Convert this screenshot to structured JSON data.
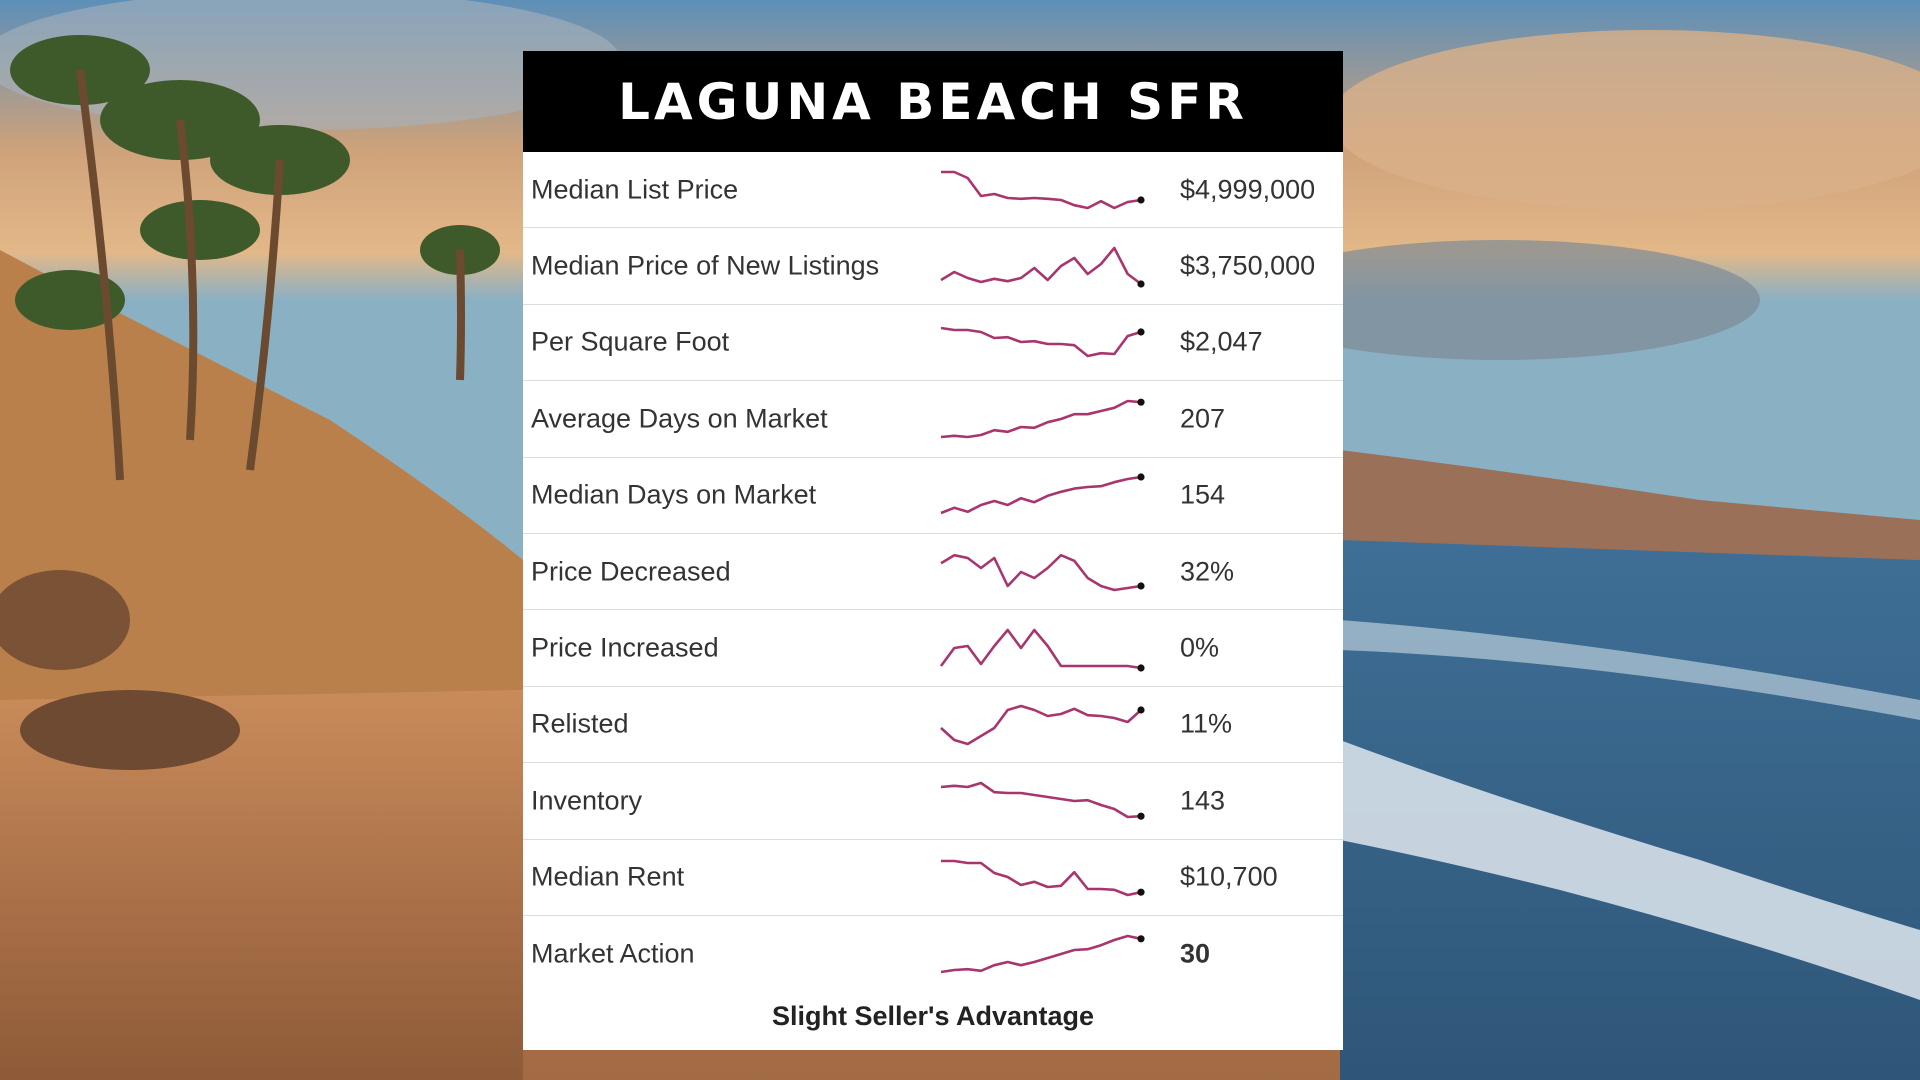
{
  "title": "LAGUNA BEACH SFR",
  "accent_color": "#a8356e",
  "rows": [
    {
      "label": "Median List Price",
      "value": "$4,999,000",
      "bold": false,
      "trend": [
        0.95,
        0.95,
        0.8,
        0.35,
        0.4,
        0.3,
        0.28,
        0.3,
        0.28,
        0.25,
        0.12,
        0.05,
        0.22,
        0.05,
        0.2,
        0.25
      ]
    },
    {
      "label": "Median Price of New Listings",
      "value": "$3,750,000",
      "bold": false,
      "trend": [
        0.15,
        0.35,
        0.2,
        0.1,
        0.18,
        0.12,
        0.2,
        0.45,
        0.15,
        0.5,
        0.7,
        0.3,
        0.55,
        0.95,
        0.3,
        0.05
      ]
    },
    {
      "label": "Per Square Foot",
      "value": "$2,047",
      "bold": false,
      "trend": [
        0.85,
        0.8,
        0.8,
        0.75,
        0.6,
        0.62,
        0.5,
        0.52,
        0.45,
        0.45,
        0.42,
        0.15,
        0.22,
        0.2,
        0.65,
        0.75
      ]
    },
    {
      "label": "Average Days on Market",
      "value": "207",
      "bold": false,
      "trend": [
        0.05,
        0.08,
        0.05,
        0.1,
        0.22,
        0.18,
        0.3,
        0.28,
        0.42,
        0.5,
        0.62,
        0.62,
        0.7,
        0.78,
        0.95,
        0.92
      ]
    },
    {
      "label": "Median Days on Market",
      "value": "154",
      "bold": false,
      "trend": [
        0.05,
        0.18,
        0.08,
        0.25,
        0.35,
        0.25,
        0.42,
        0.32,
        0.48,
        0.58,
        0.66,
        0.7,
        0.72,
        0.82,
        0.9,
        0.95
      ]
    },
    {
      "label": "Price Decreased",
      "value": "32%",
      "bold": false,
      "trend": [
        0.72,
        0.92,
        0.85,
        0.6,
        0.85,
        0.15,
        0.5,
        0.35,
        0.6,
        0.92,
        0.78,
        0.35,
        0.15,
        0.05,
        0.1,
        0.15
      ]
    },
    {
      "label": "Price Increased",
      "value": "0%",
      "bold": false,
      "trend": [
        0.05,
        0.5,
        0.55,
        0.1,
        0.55,
        0.95,
        0.5,
        0.95,
        0.55,
        0.05,
        0.05,
        0.05,
        0.05,
        0.05,
        0.05,
        0.0
      ]
    },
    {
      "label": "Relisted",
      "value": "11%",
      "bold": false,
      "trend": [
        0.4,
        0.1,
        0.0,
        0.2,
        0.4,
        0.85,
        0.95,
        0.85,
        0.7,
        0.75,
        0.88,
        0.72,
        0.7,
        0.65,
        0.55,
        0.85
      ]
    },
    {
      "label": "Inventory",
      "value": "143",
      "bold": false,
      "trend": [
        0.85,
        0.88,
        0.85,
        0.95,
        0.72,
        0.7,
        0.7,
        0.65,
        0.6,
        0.55,
        0.5,
        0.52,
        0.4,
        0.3,
        0.1,
        0.12
      ]
    },
    {
      "label": "Median Rent",
      "value": "$10,700",
      "bold": false,
      "trend": [
        0.9,
        0.9,
        0.85,
        0.85,
        0.6,
        0.5,
        0.3,
        0.38,
        0.25,
        0.28,
        0.62,
        0.2,
        0.2,
        0.18,
        0.05,
        0.12
      ]
    },
    {
      "label": "Market Action",
      "value": "30",
      "bold": true,
      "trend": [
        0.05,
        0.1,
        0.12,
        0.08,
        0.22,
        0.3,
        0.22,
        0.3,
        0.4,
        0.5,
        0.6,
        0.62,
        0.72,
        0.85,
        0.95,
        0.88
      ]
    }
  ],
  "footer": "Slight Seller's Advantage"
}
